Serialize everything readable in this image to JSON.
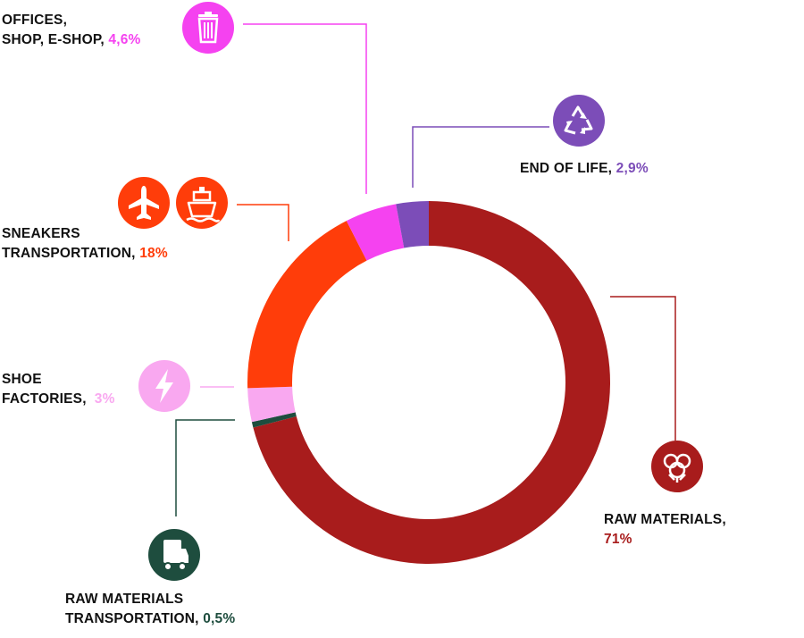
{
  "chart_data": {
    "type": "pie",
    "variant": "donut",
    "title": "",
    "slices": [
      {
        "name": "RAW MATERIALS,",
        "value_label": "71%",
        "value": 71,
        "color": "#a81c1c",
        "icon": "cotton-icon"
      },
      {
        "name": "RAW MATERIALS TRANSPORTATION,",
        "line1": "RAW MATERIALS",
        "line2": "TRANSPORTATION,",
        "value_label": "0,5%",
        "value": 0.5,
        "color": "#1e4d3e",
        "icon": "truck-icon"
      },
      {
        "name": "SHOE FACTORIES,",
        "line1": "SHOE",
        "line2": "FACTORIES,",
        "value_label": "3%",
        "value": 3,
        "color": "#f9a8f0",
        "icon": "lightning-icon"
      },
      {
        "name": "SNEAKERS TRANSPORTATION,",
        "line1": "SNEAKERS",
        "line2": "TRANSPORTATION,",
        "value_label": "18%",
        "value": 18,
        "color": "#ff3d0a",
        "icon": "airplane-and-ship-icons"
      },
      {
        "name": "OFFICES, SHOP, E-SHOP,",
        "line1": "OFFICES,",
        "line2": "SHOP, E-SHOP,",
        "value_label": "4,6%",
        "value": 4.6,
        "color": "#f542f0",
        "icon": "trash-bin-icon"
      },
      {
        "name": "END OF LIFE,",
        "value_label": "2,9%",
        "value": 2.9,
        "color": "#7c4db8",
        "icon": "recycle-icon"
      }
    ],
    "start": "top, clockwise",
    "legend": "none (callout labels)"
  },
  "colors": {
    "raw_materials": "#a81c1c",
    "raw_transport": "#1e4d3e",
    "shoe_factories": "#f9a8f0",
    "sneakers_transport": "#ff3d0a",
    "offices": "#f542f0",
    "end_of_life": "#7c4db8",
    "text": "#111111"
  }
}
